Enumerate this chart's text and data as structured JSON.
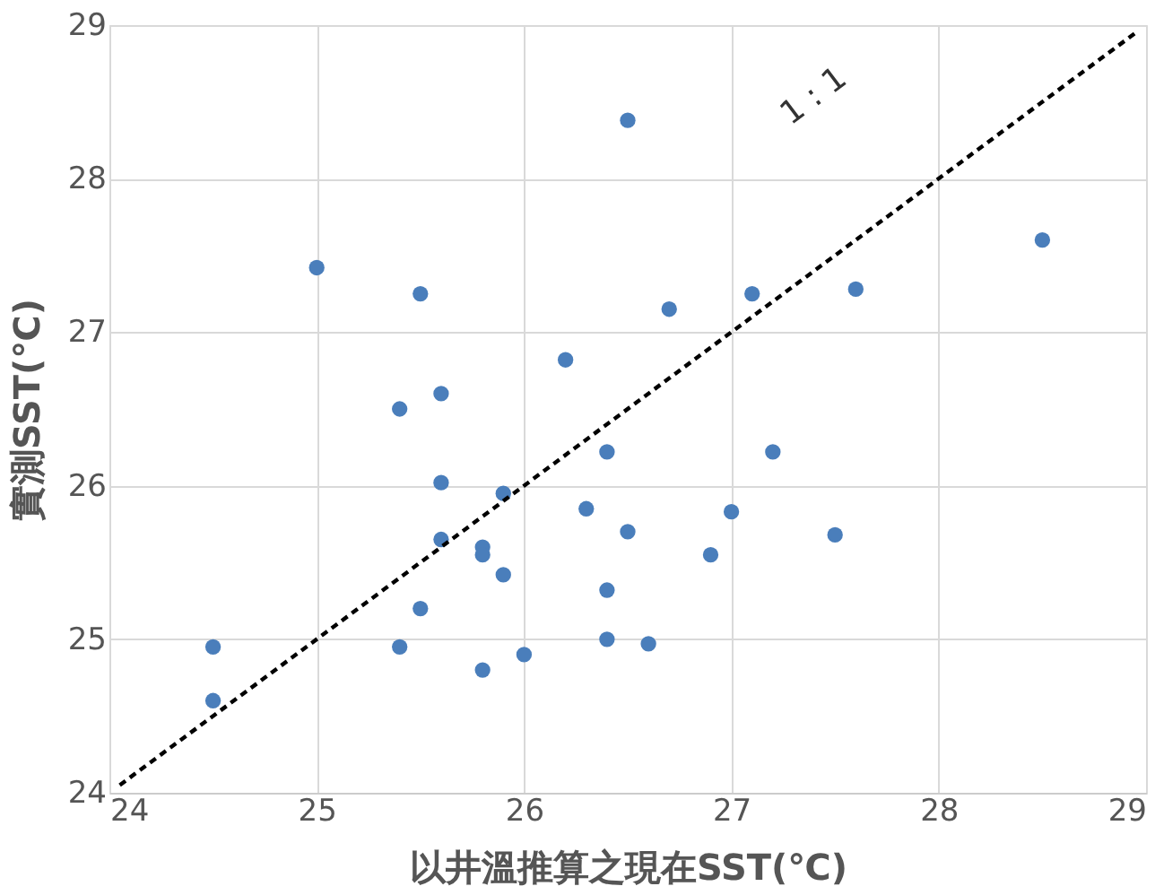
{
  "chart_data": {
    "type": "scatter",
    "xlabel": "以井溫推算之現在SST(℃)",
    "ylabel": "實測SST(℃)",
    "xlim": [
      24,
      29
    ],
    "ylim": [
      24,
      29
    ],
    "xticks": [
      24,
      25,
      26,
      27,
      28,
      29
    ],
    "yticks": [
      24,
      25,
      26,
      27,
      28,
      29
    ],
    "grid": true,
    "marker": "circle",
    "series": [
      {
        "color": "#4a7ebb",
        "x": [
          24.5,
          24.5,
          25,
          25.4,
          25.4,
          25.5,
          25.5,
          25.6,
          25.6,
          25.6,
          25.8,
          25.8,
          25.8,
          25.9,
          25.9,
          26,
          26.2,
          26.3,
          26.4,
          26.4,
          26.4,
          26.5,
          26.5,
          26.6,
          26.7,
          26.9,
          27,
          27.1,
          27.2,
          27.5,
          27.6,
          28.5
        ],
        "values": [
          24.95,
          24.6,
          27.42,
          26.5,
          24.95,
          27.25,
          25.2,
          26.6,
          26.02,
          25.65,
          25.6,
          25.55,
          24.8,
          25.95,
          25.42,
          24.9,
          26.82,
          25.85,
          26.22,
          25.32,
          25.0,
          28.38,
          25.7,
          24.97,
          27.15,
          25.55,
          25.83,
          27.25,
          26.22,
          25.68,
          27.28,
          27.6
        ]
      },
      {
        "type": "line",
        "color": "#000000",
        "line_style": "dashed",
        "marker": "none",
        "x": [
          24.05,
          28.95
        ],
        "values": [
          24.05,
          28.95
        ]
      }
    ],
    "annotations": [
      "1 : 1"
    ]
  }
}
